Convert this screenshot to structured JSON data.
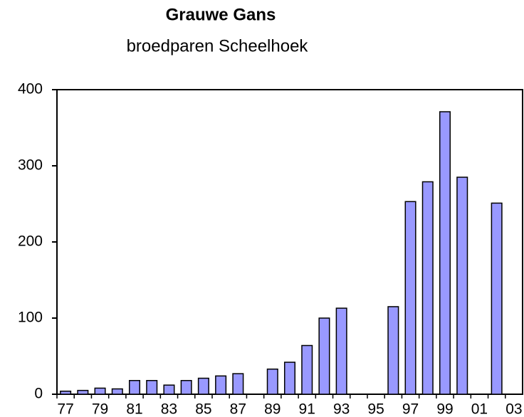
{
  "chart_data": {
    "type": "bar",
    "title": "Grauwe Gans",
    "subtitle": "broedparen Scheelhoek",
    "categories": [
      "77",
      null,
      "79",
      null,
      "81",
      null,
      "83",
      null,
      "85",
      null,
      "87",
      null,
      "89",
      null,
      "91",
      null,
      "93",
      null,
      "95",
      null,
      "97",
      null,
      "99",
      null,
      "01",
      null,
      "03"
    ],
    "values": [
      4,
      5,
      8,
      7,
      18,
      18,
      12,
      18,
      21,
      24,
      27,
      null,
      33,
      42,
      64,
      100,
      113,
      null,
      null,
      115,
      253,
      279,
      371,
      285,
      null,
      251,
      null
    ],
    "color": "#9999ff",
    "ylim": [
      0,
      400
    ],
    "yticks": [
      0,
      100,
      200,
      300,
      400
    ],
    "grid": false
  }
}
